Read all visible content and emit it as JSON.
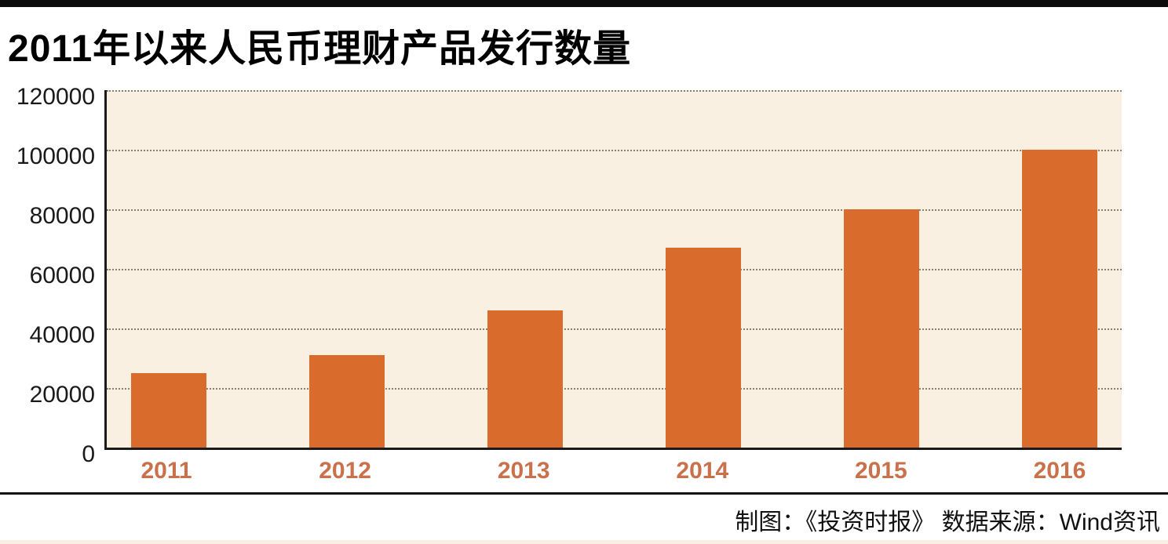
{
  "page": {
    "title": "2011年以来人民币理财产品发行数量",
    "footer": "制图：《投资时报》  数据来源：Wind资讯"
  },
  "chart_data": {
    "type": "bar",
    "title": "2011年以来人民币理财产品发行数量",
    "categories": [
      "2011",
      "2012",
      "2013",
      "2014",
      "2015",
      "2016"
    ],
    "values": [
      25000,
      31000,
      46000,
      67000,
      80000,
      100000
    ],
    "xlabel": "",
    "ylabel": "",
    "ylim": [
      0,
      120000
    ],
    "yticks": [
      0,
      20000,
      40000,
      60000,
      80000,
      100000,
      120000
    ],
    "grid": "horizontal-dotted",
    "legend_position": "none",
    "source_note": "制图：《投资时报》  数据来源：Wind资讯",
    "colors": {
      "bar": "#d96b2d",
      "plot_background": "#faf0e2",
      "x_tick_label": "#c8714a",
      "gridline": "#877f72",
      "axis": "#1a1a1a",
      "top_bar": "#0b0b0b",
      "bottom_strip": "#fcf0e0"
    }
  }
}
